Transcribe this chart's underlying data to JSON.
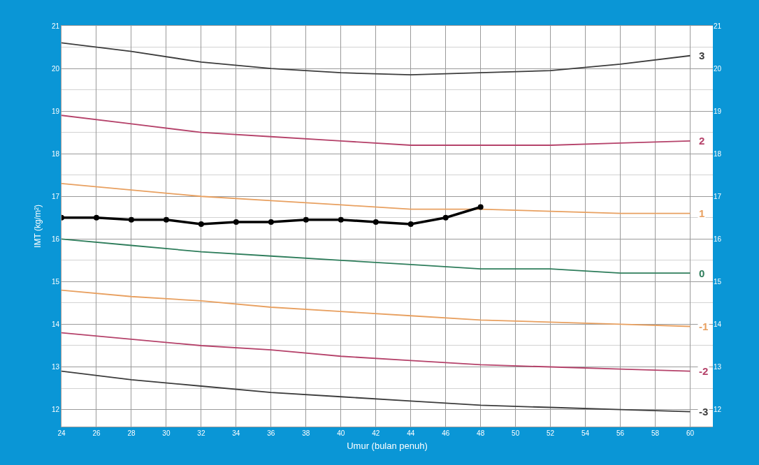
{
  "chart_data": {
    "type": "line",
    "xlabel": "Umur (bulan penuh)",
    "ylabel": "IMT (kg/m²)",
    "xlim": [
      24,
      61.3
    ],
    "xticks": [
      24,
      26,
      28,
      30,
      32,
      34,
      36,
      38,
      40,
      42,
      44,
      46,
      48,
      50,
      52,
      54,
      56,
      58,
      60
    ],
    "ylim": [
      11.6,
      21
    ],
    "yticks": [
      12,
      13,
      14,
      15,
      16,
      17,
      18,
      19,
      20,
      21
    ],
    "y2lim": [
      11.6,
      21
    ],
    "y2ticks": [
      12,
      13,
      14,
      15,
      16,
      17,
      18,
      19,
      20,
      21
    ],
    "grid": true,
    "legend": false,
    "line_style": "solid",
    "x": [
      24,
      28,
      32,
      36,
      40,
      44,
      48,
      52,
      56,
      60
    ],
    "series": [
      {
        "name": "3",
        "color": "#3c3c3c",
        "marker": "none",
        "values": [
          20.6,
          20.4,
          20.15,
          20.0,
          19.9,
          19.85,
          19.9,
          19.95,
          20.1,
          20.3
        ]
      },
      {
        "name": "2",
        "color": "#b5426a",
        "marker": "none",
        "values": [
          18.9,
          18.7,
          18.5,
          18.4,
          18.3,
          18.2,
          18.2,
          18.2,
          18.25,
          18.3
        ]
      },
      {
        "name": "1",
        "color": "#e8a060",
        "marker": "none",
        "values": [
          17.3,
          17.15,
          17.0,
          16.9,
          16.8,
          16.7,
          16.7,
          16.65,
          16.6,
          16.6
        ]
      },
      {
        "name": "0",
        "color": "#2e7d5b",
        "marker": "none",
        "values": [
          16.0,
          15.85,
          15.7,
          15.6,
          15.5,
          15.4,
          15.3,
          15.3,
          15.2,
          15.2
        ]
      },
      {
        "name": "-1",
        "color": "#e8a060",
        "marker": "none",
        "values": [
          14.8,
          14.65,
          14.55,
          14.4,
          14.3,
          14.2,
          14.1,
          14.05,
          14.0,
          13.95
        ]
      },
      {
        "name": "-2",
        "color": "#b5426a",
        "marker": "none",
        "values": [
          13.8,
          13.65,
          13.5,
          13.4,
          13.25,
          13.15,
          13.05,
          13.0,
          12.95,
          12.9
        ]
      },
      {
        "name": "-3",
        "color": "#3c3c3c",
        "marker": "none",
        "values": [
          12.9,
          12.7,
          12.55,
          12.4,
          12.3,
          12.2,
          12.1,
          12.05,
          12.0,
          11.95
        ]
      },
      {
        "color": "#000000",
        "marker": "circle",
        "x": [
          24,
          26,
          28,
          30,
          32,
          34,
          36,
          38,
          40,
          42,
          44,
          46,
          48
        ],
        "values": [
          16.5,
          16.5,
          16.45,
          16.45,
          16.35,
          16.4,
          16.4,
          16.45,
          16.45,
          16.4,
          16.35,
          16.5,
          16.75
        ]
      }
    ]
  }
}
